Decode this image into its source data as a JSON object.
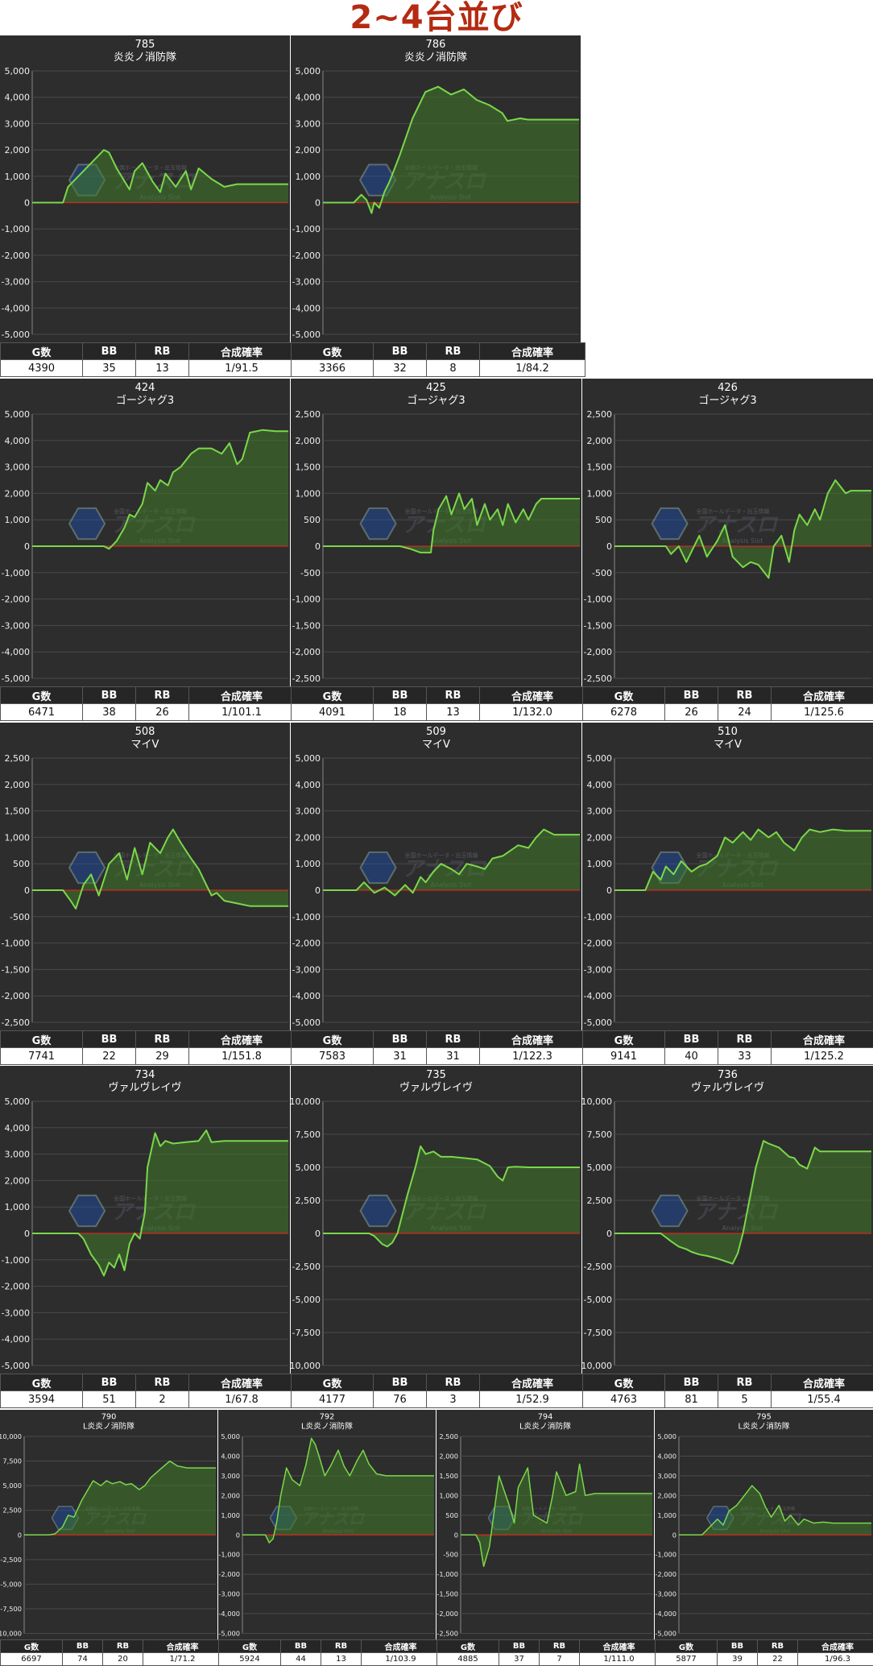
{
  "page": {
    "title": "2~4台並び"
  },
  "table_headers": [
    "G数",
    "BB",
    "RB",
    "合成確率"
  ],
  "watermark": {
    "logo_text": "アナスロ",
    "sub_text": "Analysis Slot",
    "top_text": "全国ホールデータ・出玉情報"
  },
  "colors": {
    "background": "#2d2d2d",
    "line": "#7bd84a",
    "fill": "#3f7a2a",
    "zero_line": "#d02a20",
    "title": "#b52a12"
  },
  "chart_data": [
    {
      "type": "area",
      "machine_no": "785",
      "machine_name": "炎炎ノ消防隊",
      "ylim": [
        -5000,
        5000
      ],
      "yticks": [
        5000,
        4000,
        3000,
        2000,
        1000,
        0,
        -1000,
        -2000,
        -3000,
        -4000,
        -5000
      ],
      "x": [
        0,
        0.12,
        0.14,
        0.2,
        0.25,
        0.28,
        0.3,
        0.33,
        0.38,
        0.4,
        0.43,
        0.47,
        0.5,
        0.52,
        0.56,
        0.6,
        0.62,
        0.65,
        0.7,
        0.75,
        0.8,
        1
      ],
      "y": [
        0,
        0,
        600,
        1200,
        1700,
        2000,
        1900,
        1300,
        500,
        1200,
        1500,
        800,
        400,
        1100,
        600,
        1200,
        500,
        1300,
        900,
        600,
        700,
        700
      ],
      "stats": {
        "games": "4390",
        "bb": "35",
        "rb": "13",
        "prob": "1/91.5"
      }
    },
    {
      "type": "area",
      "machine_no": "786",
      "machine_name": "炎炎ノ消防隊",
      "ylim": [
        -5000,
        5000
      ],
      "yticks": [
        5000,
        4000,
        3000,
        2000,
        1000,
        0,
        -1000,
        -2000,
        -3000,
        -4000,
        -5000
      ],
      "x": [
        0,
        0.12,
        0.15,
        0.17,
        0.19,
        0.2,
        0.22,
        0.24,
        0.26,
        0.3,
        0.35,
        0.4,
        0.45,
        0.5,
        0.55,
        0.6,
        0.65,
        0.7,
        0.72,
        0.77,
        0.8,
        1
      ],
      "y": [
        0,
        0,
        300,
        100,
        -400,
        0,
        -200,
        400,
        800,
        1800,
        3200,
        4200,
        4400,
        4100,
        4300,
        3900,
        3700,
        3400,
        3100,
        3200,
        3150,
        3150
      ],
      "stats": {
        "games": "3366",
        "bb": "32",
        "rb": "8",
        "prob": "1/84.2"
      }
    },
    {
      "type": "area",
      "machine_no": "424",
      "machine_name": "ゴージャグ3",
      "ylim": [
        -5000,
        5000
      ],
      "yticks": [
        5000,
        4000,
        3000,
        2000,
        1000,
        0,
        -1000,
        -2000,
        -3000,
        -4000,
        -5000
      ],
      "x": [
        0,
        0.28,
        0.3,
        0.33,
        0.36,
        0.38,
        0.4,
        0.43,
        0.45,
        0.48,
        0.5,
        0.53,
        0.55,
        0.58,
        0.62,
        0.65,
        0.7,
        0.74,
        0.77,
        0.8,
        0.82,
        0.85,
        0.9,
        0.95,
        1
      ],
      "y": [
        0,
        0,
        -100,
        200,
        700,
        1200,
        1100,
        1600,
        2400,
        2100,
        2500,
        2300,
        2800,
        3000,
        3500,
        3700,
        3700,
        3500,
        3900,
        3100,
        3300,
        4300,
        4400,
        4350,
        4350
      ],
      "stats": {
        "games": "6471",
        "bb": "38",
        "rb": "26",
        "prob": "1/101.1"
      }
    },
    {
      "type": "area",
      "machine_no": "425",
      "machine_name": "ゴージャグ3",
      "ylim": [
        -2500,
        2500
      ],
      "yticks": [
        2500,
        2000,
        1500,
        1000,
        500,
        0,
        -500,
        -1000,
        -1500,
        -2000,
        -2500
      ],
      "x": [
        0,
        0.3,
        0.34,
        0.38,
        0.42,
        0.43,
        0.45,
        0.48,
        0.5,
        0.53,
        0.55,
        0.58,
        0.6,
        0.63,
        0.65,
        0.68,
        0.7,
        0.72,
        0.75,
        0.78,
        0.8,
        0.83,
        0.85,
        1
      ],
      "y": [
        0,
        0,
        -50,
        -120,
        -120,
        300,
        700,
        950,
        600,
        1000,
        700,
        900,
        400,
        800,
        500,
        700,
        400,
        800,
        450,
        700,
        500,
        800,
        900,
        900
      ],
      "stats": {
        "games": "4091",
        "bb": "18",
        "rb": "13",
        "prob": "1/132.0"
      }
    },
    {
      "type": "area",
      "machine_no": "426",
      "machine_name": "ゴージャグ3",
      "ylim": [
        -2500,
        2500
      ],
      "yticks": [
        2500,
        2000,
        1500,
        1000,
        500,
        0,
        -500,
        -1000,
        -1500,
        -2000,
        -2500
      ],
      "x": [
        0,
        0.2,
        0.22,
        0.25,
        0.28,
        0.3,
        0.33,
        0.36,
        0.4,
        0.43,
        0.46,
        0.5,
        0.53,
        0.56,
        0.6,
        0.62,
        0.65,
        0.68,
        0.7,
        0.72,
        0.75,
        0.78,
        0.8,
        0.83,
        0.86,
        0.9,
        0.92,
        1
      ],
      "y": [
        0,
        0,
        -150,
        0,
        -300,
        -100,
        200,
        -200,
        100,
        400,
        -200,
        -400,
        -300,
        -350,
        -600,
        0,
        200,
        -300,
        300,
        600,
        400,
        700,
        500,
        1000,
        1250,
        1000,
        1050,
        1050
      ],
      "stats": {
        "games": "6278",
        "bb": "26",
        "rb": "24",
        "prob": "1/125.6"
      }
    },
    {
      "type": "area",
      "machine_no": "508",
      "machine_name": "マイV",
      "ylim": [
        -2500,
        2500
      ],
      "yticks": [
        2500,
        2000,
        1500,
        1000,
        500,
        0,
        -500,
        -1000,
        -1500,
        -2000,
        -2500
      ],
      "x": [
        0,
        0.12,
        0.15,
        0.17,
        0.2,
        0.23,
        0.26,
        0.3,
        0.34,
        0.37,
        0.4,
        0.43,
        0.46,
        0.5,
        0.53,
        0.55,
        0.58,
        0.62,
        0.65,
        0.68,
        0.7,
        0.72,
        0.75,
        0.8,
        0.85,
        0.9,
        1
      ],
      "y": [
        0,
        0,
        -200,
        -350,
        100,
        300,
        -100,
        500,
        700,
        200,
        800,
        300,
        900,
        700,
        1000,
        1150,
        900,
        600,
        400,
        100,
        -100,
        -50,
        -200,
        -250,
        -300,
        -300,
        -300
      ],
      "stats": {
        "games": "7741",
        "bb": "22",
        "rb": "29",
        "prob": "1/151.8"
      }
    },
    {
      "type": "area",
      "machine_no": "509",
      "machine_name": "マイV",
      "ylim": [
        -5000,
        5000
      ],
      "yticks": [
        5000,
        4000,
        3000,
        2000,
        1000,
        0,
        -1000,
        -2000,
        -3000,
        -4000,
        -5000
      ],
      "x": [
        0,
        0.13,
        0.16,
        0.2,
        0.24,
        0.28,
        0.32,
        0.35,
        0.38,
        0.4,
        0.43,
        0.46,
        0.5,
        0.53,
        0.56,
        0.6,
        0.63,
        0.66,
        0.7,
        0.73,
        0.76,
        0.8,
        0.83,
        0.86,
        0.9,
        1
      ],
      "y": [
        0,
        0,
        300,
        -100,
        100,
        -200,
        200,
        -100,
        500,
        300,
        700,
        1000,
        800,
        600,
        1000,
        900,
        800,
        1200,
        1300,
        1500,
        1700,
        1600,
        2000,
        2300,
        2100,
        2100
      ],
      "stats": {
        "games": "7583",
        "bb": "31",
        "rb": "31",
        "prob": "1/122.3"
      }
    },
    {
      "type": "area",
      "machine_no": "510",
      "machine_name": "マイV",
      "ylim": [
        -5000,
        5000
      ],
      "yticks": [
        5000,
        4000,
        3000,
        2000,
        1000,
        0,
        -1000,
        -2000,
        -3000,
        -4000,
        -5000
      ],
      "x": [
        0,
        0.12,
        0.15,
        0.18,
        0.2,
        0.23,
        0.26,
        0.3,
        0.33,
        0.36,
        0.4,
        0.43,
        0.46,
        0.5,
        0.53,
        0.56,
        0.6,
        0.63,
        0.66,
        0.7,
        0.73,
        0.76,
        0.8,
        0.85,
        0.9,
        1
      ],
      "y": [
        0,
        0,
        700,
        400,
        900,
        600,
        1100,
        700,
        900,
        1000,
        1300,
        2000,
        1800,
        2200,
        1900,
        2300,
        2000,
        2200,
        1800,
        1500,
        2000,
        2300,
        2200,
        2300,
        2250,
        2250
      ],
      "stats": {
        "games": "9141",
        "bb": "40",
        "rb": "33",
        "prob": "1/125.2"
      }
    },
    {
      "type": "area",
      "machine_no": "734",
      "machine_name": "ヴァルヴレイヴ",
      "ylim": [
        -5000,
        5000
      ],
      "yticks": [
        5000,
        4000,
        3000,
        2000,
        1000,
        0,
        -1000,
        -2000,
        -3000,
        -4000,
        -5000
      ],
      "x": [
        0,
        0.18,
        0.2,
        0.23,
        0.26,
        0.28,
        0.3,
        0.32,
        0.34,
        0.36,
        0.38,
        0.4,
        0.42,
        0.44,
        0.45,
        0.48,
        0.5,
        0.52,
        0.55,
        0.6,
        0.65,
        0.68,
        0.7,
        0.75,
        0.8,
        1
      ],
      "y": [
        0,
        0,
        -200,
        -800,
        -1200,
        -1600,
        -1100,
        -1300,
        -800,
        -1400,
        -400,
        0,
        -200,
        800,
        2500,
        3800,
        3300,
        3500,
        3400,
        3450,
        3500,
        3900,
        3450,
        3500,
        3500,
        3500
      ],
      "stats": {
        "games": "3594",
        "bb": "51",
        "rb": "2",
        "prob": "1/67.8"
      }
    },
    {
      "type": "area",
      "machine_no": "735",
      "machine_name": "ヴァルヴレイヴ",
      "ylim": [
        -10000,
        10000
      ],
      "yticks": [
        10000,
        7500,
        5000,
        2500,
        0,
        -2500,
        -5000,
        -7500,
        -10000
      ],
      "x": [
        0,
        0.18,
        0.2,
        0.23,
        0.25,
        0.27,
        0.29,
        0.31,
        0.33,
        0.36,
        0.38,
        0.4,
        0.43,
        0.46,
        0.5,
        0.55,
        0.6,
        0.65,
        0.68,
        0.7,
        0.72,
        0.75,
        0.8,
        0.85,
        1
      ],
      "y": [
        0,
        0,
        -200,
        -800,
        -1000,
        -700,
        0,
        1500,
        3000,
        5000,
        6600,
        6000,
        6200,
        5800,
        5800,
        5700,
        5600,
        5100,
        4300,
        4000,
        5000,
        5050,
        5000,
        5000,
        5000
      ],
      "stats": {
        "games": "4177",
        "bb": "76",
        "rb": "3",
        "prob": "1/52.9"
      }
    },
    {
      "type": "area",
      "machine_no": "736",
      "machine_name": "ヴァルヴレイヴ",
      "ylim": [
        -10000,
        10000
      ],
      "yticks": [
        10000,
        7500,
        5000,
        2500,
        0,
        -2500,
        -5000,
        -7500,
        -10000
      ],
      "x": [
        0,
        0.18,
        0.22,
        0.25,
        0.28,
        0.3,
        0.33,
        0.36,
        0.4,
        0.43,
        0.46,
        0.48,
        0.5,
        0.53,
        0.55,
        0.58,
        0.6,
        0.64,
        0.68,
        0.7,
        0.72,
        0.75,
        0.78,
        0.8,
        1
      ],
      "y": [
        0,
        0,
        -600,
        -1000,
        -1200,
        -1400,
        -1600,
        -1700,
        -1900,
        -2100,
        -2300,
        -1500,
        0,
        3000,
        5000,
        7000,
        6800,
        6500,
        5800,
        5700,
        5200,
        4900,
        6500,
        6200,
        6200
      ],
      "stats": {
        "games": "4763",
        "bb": "81",
        "rb": "5",
        "prob": "1/55.4"
      }
    },
    {
      "type": "area",
      "machine_no": "790",
      "machine_name": "L炎炎ノ消防隊",
      "ylim": [
        -10000,
        10000
      ],
      "yticks": [
        10000,
        7500,
        5000,
        2500,
        0,
        -2500,
        -5000,
        -7500,
        -10000
      ],
      "x": [
        0,
        0.13,
        0.16,
        0.2,
        0.23,
        0.26,
        0.3,
        0.33,
        0.36,
        0.4,
        0.43,
        0.46,
        0.5,
        0.53,
        0.56,
        0.6,
        0.63,
        0.66,
        0.7,
        0.73,
        0.76,
        0.8,
        0.85,
        0.9,
        1
      ],
      "y": [
        0,
        0,
        100,
        800,
        2000,
        1800,
        3500,
        4500,
        5500,
        5000,
        5500,
        5200,
        5400,
        5100,
        5200,
        4600,
        5000,
        5800,
        6500,
        7000,
        7500,
        7000,
        6800,
        6800,
        6800
      ],
      "stats": {
        "games": "6697",
        "bb": "74",
        "rb": "20",
        "prob": "1/71.2"
      }
    },
    {
      "type": "area",
      "machine_no": "792",
      "machine_name": "L炎炎ノ消防隊",
      "ylim": [
        -5000,
        5000
      ],
      "yticks": [
        5000,
        4000,
        3000,
        2000,
        1000,
        0,
        -1000,
        -2000,
        -3000,
        -4000,
        -5000
      ],
      "x": [
        0,
        0.12,
        0.14,
        0.16,
        0.18,
        0.2,
        0.23,
        0.26,
        0.3,
        0.33,
        0.36,
        0.38,
        0.4,
        0.43,
        0.46,
        0.5,
        0.53,
        0.56,
        0.6,
        0.63,
        0.66,
        0.7,
        0.75,
        1
      ],
      "y": [
        0,
        0,
        -400,
        -200,
        700,
        2000,
        3400,
        2800,
        2500,
        3500,
        4900,
        4600,
        4000,
        3000,
        3500,
        4300,
        3500,
        3000,
        3800,
        4300,
        3600,
        3100,
        3000,
        3000
      ],
      "stats": {
        "games": "5924",
        "bb": "44",
        "rb": "13",
        "prob": "1/103.9"
      }
    },
    {
      "type": "area",
      "machine_no": "794",
      "machine_name": "L炎炎ノ消防隊",
      "ylim": [
        -2500,
        2500
      ],
      "yticks": [
        2500,
        2000,
        1500,
        1000,
        500,
        0,
        -500,
        -1000,
        -1500,
        -2000,
        -2500
      ],
      "x": [
        0,
        0.08,
        0.1,
        0.12,
        0.15,
        0.2,
        0.25,
        0.28,
        0.3,
        0.35,
        0.38,
        0.45,
        0.48,
        0.5,
        0.55,
        0.6,
        0.62,
        0.65,
        0.7,
        0.75,
        0.8,
        1
      ],
      "y": [
        0,
        0,
        -200,
        -800,
        -300,
        1500,
        800,
        300,
        1200,
        1700,
        500,
        300,
        1000,
        1600,
        1000,
        1100,
        1800,
        1000,
        1050,
        1050,
        1050,
        1050
      ],
      "stats": {
        "games": "4885",
        "bb": "37",
        "rb": "7",
        "prob": "1/111.0"
      }
    },
    {
      "type": "area",
      "machine_no": "795",
      "machine_name": "L炎炎ノ消防隊",
      "ylim": [
        -5000,
        5000
      ],
      "yticks": [
        5000,
        4000,
        3000,
        2000,
        1000,
        0,
        -1000,
        -2000,
        -3000,
        -4000,
        -5000
      ],
      "x": [
        0,
        0.12,
        0.16,
        0.2,
        0.23,
        0.26,
        0.3,
        0.34,
        0.38,
        0.42,
        0.45,
        0.48,
        0.52,
        0.55,
        0.58,
        0.62,
        0.65,
        0.7,
        0.75,
        0.8,
        1
      ],
      "y": [
        0,
        0,
        400,
        800,
        500,
        1200,
        1500,
        2000,
        2500,
        2100,
        1400,
        900,
        1500,
        700,
        1000,
        500,
        800,
        600,
        650,
        600,
        600
      ],
      "stats": {
        "games": "5877",
        "bb": "39",
        "rb": "22",
        "prob": "1/96.3"
      }
    }
  ]
}
